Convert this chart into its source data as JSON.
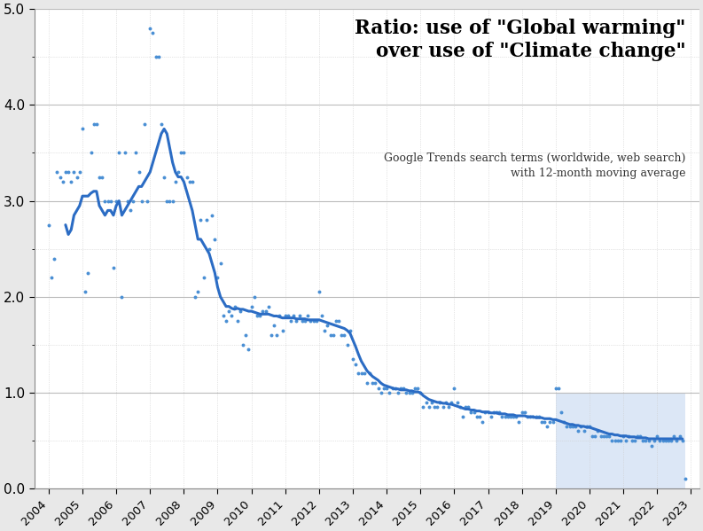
{
  "title_line1": "Ratio: use of \"Global warming\"",
  "title_line2": "over use of \"Climate change\"",
  "subtitle_line1": "Google Trends search terms (worldwide, web search)",
  "subtitle_line2": "with 12-month moving average",
  "ylim": [
    0.0,
    5.0
  ],
  "yticks": [
    0.0,
    1.0,
    2.0,
    3.0,
    4.0,
    5.0
  ],
  "background_color": "#e8e8e8",
  "plot_background_color": "#ffffff",
  "line_color": "#2b6cc4",
  "dot_color": "#4a8fd4",
  "shade_color": "#c5d8f0",
  "shade_alpha": 0.6,
  "shade_start_year": 2019.0,
  "shade_end_year": 2022.833,
  "shade_top": 1.0,
  "xlim_left": 2003.58,
  "xlim_right": 2023.25,
  "raw_data": [
    [
      2004.0,
      2.75
    ],
    [
      2004.083,
      2.2
    ],
    [
      2004.167,
      2.4
    ],
    [
      2004.25,
      3.3
    ],
    [
      2004.333,
      3.25
    ],
    [
      2004.417,
      3.2
    ],
    [
      2004.5,
      3.3
    ],
    [
      2004.583,
      3.3
    ],
    [
      2004.667,
      3.2
    ],
    [
      2004.75,
      3.3
    ],
    [
      2004.833,
      3.25
    ],
    [
      2004.917,
      3.3
    ],
    [
      2005.0,
      3.75
    ],
    [
      2005.083,
      2.05
    ],
    [
      2005.167,
      2.25
    ],
    [
      2005.25,
      3.5
    ],
    [
      2005.333,
      3.8
    ],
    [
      2005.417,
      3.8
    ],
    [
      2005.5,
      3.25
    ],
    [
      2005.583,
      3.25
    ],
    [
      2005.667,
      3.0
    ],
    [
      2005.75,
      3.0
    ],
    [
      2005.833,
      3.0
    ],
    [
      2005.917,
      2.3
    ],
    [
      2006.0,
      3.0
    ],
    [
      2006.083,
      3.5
    ],
    [
      2006.167,
      2.0
    ],
    [
      2006.25,
      3.5
    ],
    [
      2006.333,
      3.0
    ],
    [
      2006.417,
      2.9
    ],
    [
      2006.5,
      3.0
    ],
    [
      2006.583,
      3.5
    ],
    [
      2006.667,
      3.3
    ],
    [
      2006.75,
      3.0
    ],
    [
      2006.833,
      3.8
    ],
    [
      2006.917,
      3.0
    ],
    [
      2007.0,
      4.8
    ],
    [
      2007.083,
      4.75
    ],
    [
      2007.167,
      4.5
    ],
    [
      2007.25,
      4.5
    ],
    [
      2007.333,
      3.8
    ],
    [
      2007.417,
      3.25
    ],
    [
      2007.5,
      3.0
    ],
    [
      2007.583,
      3.0
    ],
    [
      2007.667,
      3.0
    ],
    [
      2007.75,
      3.2
    ],
    [
      2007.833,
      3.3
    ],
    [
      2007.917,
      3.5
    ],
    [
      2008.0,
      3.5
    ],
    [
      2008.083,
      3.25
    ],
    [
      2008.167,
      3.2
    ],
    [
      2008.25,
      3.2
    ],
    [
      2008.333,
      2.0
    ],
    [
      2008.417,
      2.05
    ],
    [
      2008.5,
      2.8
    ],
    [
      2008.583,
      2.2
    ],
    [
      2008.667,
      2.8
    ],
    [
      2008.75,
      2.5
    ],
    [
      2008.833,
      2.85
    ],
    [
      2008.917,
      2.6
    ],
    [
      2009.0,
      2.2
    ],
    [
      2009.083,
      2.35
    ],
    [
      2009.167,
      1.8
    ],
    [
      2009.25,
      1.75
    ],
    [
      2009.333,
      1.85
    ],
    [
      2009.417,
      1.8
    ],
    [
      2009.5,
      1.9
    ],
    [
      2009.583,
      1.75
    ],
    [
      2009.667,
      1.85
    ],
    [
      2009.75,
      1.5
    ],
    [
      2009.833,
      1.6
    ],
    [
      2009.917,
      1.45
    ],
    [
      2010.0,
      1.9
    ],
    [
      2010.083,
      2.0
    ],
    [
      2010.167,
      1.8
    ],
    [
      2010.25,
      1.8
    ],
    [
      2010.333,
      1.85
    ],
    [
      2010.417,
      1.85
    ],
    [
      2010.5,
      1.9
    ],
    [
      2010.583,
      1.6
    ],
    [
      2010.667,
      1.7
    ],
    [
      2010.75,
      1.6
    ],
    [
      2010.833,
      1.8
    ],
    [
      2010.917,
      1.65
    ],
    [
      2011.0,
      1.8
    ],
    [
      2011.083,
      1.8
    ],
    [
      2011.167,
      1.75
    ],
    [
      2011.25,
      1.8
    ],
    [
      2011.333,
      1.75
    ],
    [
      2011.417,
      1.8
    ],
    [
      2011.5,
      1.75
    ],
    [
      2011.583,
      1.75
    ],
    [
      2011.667,
      1.8
    ],
    [
      2011.75,
      1.75
    ],
    [
      2011.833,
      1.75
    ],
    [
      2011.917,
      1.75
    ],
    [
      2012.0,
      2.05
    ],
    [
      2012.083,
      1.8
    ],
    [
      2012.167,
      1.65
    ],
    [
      2012.25,
      1.7
    ],
    [
      2012.333,
      1.6
    ],
    [
      2012.417,
      1.6
    ],
    [
      2012.5,
      1.75
    ],
    [
      2012.583,
      1.75
    ],
    [
      2012.667,
      1.6
    ],
    [
      2012.75,
      1.6
    ],
    [
      2012.833,
      1.5
    ],
    [
      2012.917,
      1.65
    ],
    [
      2013.0,
      1.35
    ],
    [
      2013.083,
      1.3
    ],
    [
      2013.167,
      1.2
    ],
    [
      2013.25,
      1.2
    ],
    [
      2013.333,
      1.2
    ],
    [
      2013.417,
      1.1
    ],
    [
      2013.5,
      1.2
    ],
    [
      2013.583,
      1.1
    ],
    [
      2013.667,
      1.1
    ],
    [
      2013.75,
      1.05
    ],
    [
      2013.833,
      1.0
    ],
    [
      2013.917,
      1.05
    ],
    [
      2014.0,
      1.05
    ],
    [
      2014.083,
      1.0
    ],
    [
      2014.167,
      1.05
    ],
    [
      2014.25,
      1.05
    ],
    [
      2014.333,
      1.0
    ],
    [
      2014.417,
      1.05
    ],
    [
      2014.5,
      1.05
    ],
    [
      2014.583,
      1.0
    ],
    [
      2014.667,
      1.0
    ],
    [
      2014.75,
      1.0
    ],
    [
      2014.833,
      1.05
    ],
    [
      2014.917,
      1.05
    ],
    [
      2015.0,
      1.0
    ],
    [
      2015.083,
      0.85
    ],
    [
      2015.167,
      0.9
    ],
    [
      2015.25,
      0.85
    ],
    [
      2015.333,
      0.9
    ],
    [
      2015.417,
      0.85
    ],
    [
      2015.5,
      0.85
    ],
    [
      2015.583,
      0.9
    ],
    [
      2015.667,
      0.85
    ],
    [
      2015.75,
      0.9
    ],
    [
      2015.833,
      0.85
    ],
    [
      2015.917,
      0.9
    ],
    [
      2016.0,
      1.05
    ],
    [
      2016.083,
      0.9
    ],
    [
      2016.167,
      0.85
    ],
    [
      2016.25,
      0.75
    ],
    [
      2016.333,
      0.85
    ],
    [
      2016.417,
      0.85
    ],
    [
      2016.5,
      0.8
    ],
    [
      2016.583,
      0.8
    ],
    [
      2016.667,
      0.75
    ],
    [
      2016.75,
      0.75
    ],
    [
      2016.833,
      0.7
    ],
    [
      2016.917,
      0.8
    ],
    [
      2017.0,
      0.8
    ],
    [
      2017.083,
      0.75
    ],
    [
      2017.167,
      0.8
    ],
    [
      2017.25,
      0.8
    ],
    [
      2017.333,
      0.8
    ],
    [
      2017.417,
      0.75
    ],
    [
      2017.5,
      0.75
    ],
    [
      2017.583,
      0.75
    ],
    [
      2017.667,
      0.75
    ],
    [
      2017.75,
      0.75
    ],
    [
      2017.833,
      0.75
    ],
    [
      2017.917,
      0.7
    ],
    [
      2018.0,
      0.8
    ],
    [
      2018.083,
      0.8
    ],
    [
      2018.167,
      0.75
    ],
    [
      2018.25,
      0.75
    ],
    [
      2018.333,
      0.75
    ],
    [
      2018.417,
      0.75
    ],
    [
      2018.5,
      0.75
    ],
    [
      2018.583,
      0.7
    ],
    [
      2018.667,
      0.7
    ],
    [
      2018.75,
      0.65
    ],
    [
      2018.833,
      0.7
    ],
    [
      2018.917,
      0.7
    ],
    [
      2019.0,
      1.05
    ],
    [
      2019.083,
      1.05
    ],
    [
      2019.167,
      0.8
    ],
    [
      2019.25,
      0.7
    ],
    [
      2019.333,
      0.65
    ],
    [
      2019.417,
      0.65
    ],
    [
      2019.5,
      0.65
    ],
    [
      2019.583,
      0.65
    ],
    [
      2019.667,
      0.6
    ],
    [
      2019.75,
      0.65
    ],
    [
      2019.833,
      0.6
    ],
    [
      2019.917,
      0.65
    ],
    [
      2020.0,
      0.65
    ],
    [
      2020.083,
      0.55
    ],
    [
      2020.167,
      0.55
    ],
    [
      2020.25,
      0.6
    ],
    [
      2020.333,
      0.55
    ],
    [
      2020.417,
      0.55
    ],
    [
      2020.5,
      0.55
    ],
    [
      2020.583,
      0.55
    ],
    [
      2020.667,
      0.5
    ],
    [
      2020.75,
      0.5
    ],
    [
      2020.833,
      0.5
    ],
    [
      2020.917,
      0.5
    ],
    [
      2021.0,
      0.55
    ],
    [
      2021.083,
      0.5
    ],
    [
      2021.167,
      0.55
    ],
    [
      2021.25,
      0.5
    ],
    [
      2021.333,
      0.5
    ],
    [
      2021.417,
      0.55
    ],
    [
      2021.5,
      0.55
    ],
    [
      2021.583,
      0.5
    ],
    [
      2021.667,
      0.5
    ],
    [
      2021.75,
      0.5
    ],
    [
      2021.833,
      0.45
    ],
    [
      2021.917,
      0.5
    ],
    [
      2022.0,
      0.55
    ],
    [
      2022.083,
      0.5
    ],
    [
      2022.167,
      0.5
    ],
    [
      2022.25,
      0.5
    ],
    [
      2022.333,
      0.5
    ],
    [
      2022.417,
      0.5
    ],
    [
      2022.5,
      0.55
    ],
    [
      2022.583,
      0.5
    ],
    [
      2022.667,
      0.55
    ],
    [
      2022.75,
      0.5
    ],
    [
      2022.833,
      0.1
    ]
  ],
  "moving_avg": [
    [
      2004.5,
      2.75
    ],
    [
      2004.583,
      2.65
    ],
    [
      2004.667,
      2.7
    ],
    [
      2004.75,
      2.85
    ],
    [
      2004.833,
      2.9
    ],
    [
      2004.917,
      2.95
    ],
    [
      2005.0,
      3.05
    ],
    [
      2005.083,
      3.05
    ],
    [
      2005.167,
      3.05
    ],
    [
      2005.25,
      3.08
    ],
    [
      2005.333,
      3.1
    ],
    [
      2005.417,
      3.1
    ],
    [
      2005.5,
      2.95
    ],
    [
      2005.583,
      2.9
    ],
    [
      2005.667,
      2.85
    ],
    [
      2005.75,
      2.9
    ],
    [
      2005.833,
      2.9
    ],
    [
      2005.917,
      2.85
    ],
    [
      2006.0,
      2.95
    ],
    [
      2006.083,
      3.0
    ],
    [
      2006.167,
      2.85
    ],
    [
      2006.25,
      2.9
    ],
    [
      2006.333,
      2.95
    ],
    [
      2006.417,
      3.0
    ],
    [
      2006.5,
      3.05
    ],
    [
      2006.583,
      3.1
    ],
    [
      2006.667,
      3.15
    ],
    [
      2006.75,
      3.15
    ],
    [
      2006.833,
      3.2
    ],
    [
      2006.917,
      3.25
    ],
    [
      2007.0,
      3.3
    ],
    [
      2007.083,
      3.4
    ],
    [
      2007.167,
      3.5
    ],
    [
      2007.25,
      3.6
    ],
    [
      2007.333,
      3.7
    ],
    [
      2007.417,
      3.75
    ],
    [
      2007.5,
      3.7
    ],
    [
      2007.583,
      3.55
    ],
    [
      2007.667,
      3.4
    ],
    [
      2007.75,
      3.3
    ],
    [
      2007.833,
      3.25
    ],
    [
      2007.917,
      3.25
    ],
    [
      2008.0,
      3.2
    ],
    [
      2008.083,
      3.1
    ],
    [
      2008.167,
      3.0
    ],
    [
      2008.25,
      2.9
    ],
    [
      2008.333,
      2.75
    ],
    [
      2008.417,
      2.6
    ],
    [
      2008.5,
      2.6
    ],
    [
      2008.583,
      2.55
    ],
    [
      2008.667,
      2.5
    ],
    [
      2008.75,
      2.45
    ],
    [
      2008.833,
      2.35
    ],
    [
      2008.917,
      2.25
    ],
    [
      2009.0,
      2.1
    ],
    [
      2009.083,
      2.0
    ],
    [
      2009.167,
      1.95
    ],
    [
      2009.25,
      1.9
    ],
    [
      2009.333,
      1.9
    ],
    [
      2009.417,
      1.88
    ],
    [
      2009.5,
      1.87
    ],
    [
      2009.583,
      1.88
    ],
    [
      2009.667,
      1.87
    ],
    [
      2009.75,
      1.87
    ],
    [
      2009.833,
      1.86
    ],
    [
      2009.917,
      1.85
    ],
    [
      2010.0,
      1.85
    ],
    [
      2010.083,
      1.84
    ],
    [
      2010.167,
      1.83
    ],
    [
      2010.25,
      1.82
    ],
    [
      2010.333,
      1.82
    ],
    [
      2010.417,
      1.82
    ],
    [
      2010.5,
      1.82
    ],
    [
      2010.583,
      1.81
    ],
    [
      2010.667,
      1.8
    ],
    [
      2010.75,
      1.8
    ],
    [
      2010.833,
      1.79
    ],
    [
      2010.917,
      1.78
    ],
    [
      2011.0,
      1.78
    ],
    [
      2011.083,
      1.78
    ],
    [
      2011.167,
      1.78
    ],
    [
      2011.25,
      1.78
    ],
    [
      2011.333,
      1.77
    ],
    [
      2011.417,
      1.77
    ],
    [
      2011.5,
      1.77
    ],
    [
      2011.583,
      1.77
    ],
    [
      2011.667,
      1.76
    ],
    [
      2011.75,
      1.76
    ],
    [
      2011.833,
      1.76
    ],
    [
      2011.917,
      1.76
    ],
    [
      2012.0,
      1.76
    ],
    [
      2012.083,
      1.75
    ],
    [
      2012.167,
      1.74
    ],
    [
      2012.25,
      1.73
    ],
    [
      2012.333,
      1.72
    ],
    [
      2012.417,
      1.71
    ],
    [
      2012.5,
      1.7
    ],
    [
      2012.583,
      1.69
    ],
    [
      2012.667,
      1.68
    ],
    [
      2012.75,
      1.67
    ],
    [
      2012.833,
      1.65
    ],
    [
      2012.917,
      1.62
    ],
    [
      2013.0,
      1.55
    ],
    [
      2013.083,
      1.48
    ],
    [
      2013.167,
      1.4
    ],
    [
      2013.25,
      1.33
    ],
    [
      2013.333,
      1.28
    ],
    [
      2013.417,
      1.23
    ],
    [
      2013.5,
      1.2
    ],
    [
      2013.583,
      1.17
    ],
    [
      2013.667,
      1.15
    ],
    [
      2013.75,
      1.13
    ],
    [
      2013.833,
      1.1
    ],
    [
      2013.917,
      1.08
    ],
    [
      2014.0,
      1.07
    ],
    [
      2014.083,
      1.06
    ],
    [
      2014.167,
      1.05
    ],
    [
      2014.25,
      1.04
    ],
    [
      2014.333,
      1.04
    ],
    [
      2014.417,
      1.03
    ],
    [
      2014.5,
      1.03
    ],
    [
      2014.583,
      1.03
    ],
    [
      2014.667,
      1.02
    ],
    [
      2014.75,
      1.02
    ],
    [
      2014.833,
      1.01
    ],
    [
      2014.917,
      1.01
    ],
    [
      2015.0,
      1.0
    ],
    [
      2015.083,
      0.97
    ],
    [
      2015.167,
      0.95
    ],
    [
      2015.25,
      0.93
    ],
    [
      2015.333,
      0.92
    ],
    [
      2015.417,
      0.91
    ],
    [
      2015.5,
      0.9
    ],
    [
      2015.583,
      0.9
    ],
    [
      2015.667,
      0.89
    ],
    [
      2015.75,
      0.89
    ],
    [
      2015.833,
      0.88
    ],
    [
      2015.917,
      0.88
    ],
    [
      2016.0,
      0.87
    ],
    [
      2016.083,
      0.86
    ],
    [
      2016.167,
      0.85
    ],
    [
      2016.25,
      0.84
    ],
    [
      2016.333,
      0.83
    ],
    [
      2016.417,
      0.83
    ],
    [
      2016.5,
      0.82
    ],
    [
      2016.583,
      0.82
    ],
    [
      2016.667,
      0.81
    ],
    [
      2016.75,
      0.81
    ],
    [
      2016.833,
      0.8
    ],
    [
      2016.917,
      0.8
    ],
    [
      2017.0,
      0.8
    ],
    [
      2017.083,
      0.79
    ],
    [
      2017.167,
      0.79
    ],
    [
      2017.25,
      0.79
    ],
    [
      2017.333,
      0.78
    ],
    [
      2017.417,
      0.78
    ],
    [
      2017.5,
      0.78
    ],
    [
      2017.583,
      0.77
    ],
    [
      2017.667,
      0.77
    ],
    [
      2017.75,
      0.77
    ],
    [
      2017.833,
      0.76
    ],
    [
      2017.917,
      0.76
    ],
    [
      2018.0,
      0.76
    ],
    [
      2018.083,
      0.76
    ],
    [
      2018.167,
      0.75
    ],
    [
      2018.25,
      0.75
    ],
    [
      2018.333,
      0.75
    ],
    [
      2018.417,
      0.74
    ],
    [
      2018.5,
      0.74
    ],
    [
      2018.583,
      0.74
    ],
    [
      2018.667,
      0.73
    ],
    [
      2018.75,
      0.73
    ],
    [
      2018.833,
      0.73
    ],
    [
      2018.917,
      0.72
    ],
    [
      2019.0,
      0.72
    ],
    [
      2019.083,
      0.71
    ],
    [
      2019.167,
      0.7
    ],
    [
      2019.25,
      0.69
    ],
    [
      2019.333,
      0.68
    ],
    [
      2019.417,
      0.67
    ],
    [
      2019.5,
      0.67
    ],
    [
      2019.583,
      0.66
    ],
    [
      2019.667,
      0.66
    ],
    [
      2019.75,
      0.65
    ],
    [
      2019.833,
      0.65
    ],
    [
      2019.917,
      0.64
    ],
    [
      2020.0,
      0.64
    ],
    [
      2020.083,
      0.63
    ],
    [
      2020.167,
      0.62
    ],
    [
      2020.25,
      0.61
    ],
    [
      2020.333,
      0.6
    ],
    [
      2020.417,
      0.59
    ],
    [
      2020.5,
      0.58
    ],
    [
      2020.583,
      0.57
    ],
    [
      2020.667,
      0.57
    ],
    [
      2020.75,
      0.56
    ],
    [
      2020.833,
      0.56
    ],
    [
      2020.917,
      0.55
    ],
    [
      2021.0,
      0.55
    ],
    [
      2021.083,
      0.55
    ],
    [
      2021.167,
      0.54
    ],
    [
      2021.25,
      0.54
    ],
    [
      2021.333,
      0.54
    ],
    [
      2021.417,
      0.53
    ],
    [
      2021.5,
      0.53
    ],
    [
      2021.583,
      0.53
    ],
    [
      2021.667,
      0.53
    ],
    [
      2021.75,
      0.52
    ],
    [
      2021.833,
      0.52
    ],
    [
      2021.917,
      0.52
    ],
    [
      2022.0,
      0.52
    ],
    [
      2022.083,
      0.52
    ],
    [
      2022.167,
      0.52
    ],
    [
      2022.25,
      0.52
    ],
    [
      2022.333,
      0.52
    ],
    [
      2022.417,
      0.52
    ],
    [
      2022.5,
      0.52
    ],
    [
      2022.583,
      0.52
    ],
    [
      2022.667,
      0.52
    ],
    [
      2022.75,
      0.52
    ]
  ]
}
